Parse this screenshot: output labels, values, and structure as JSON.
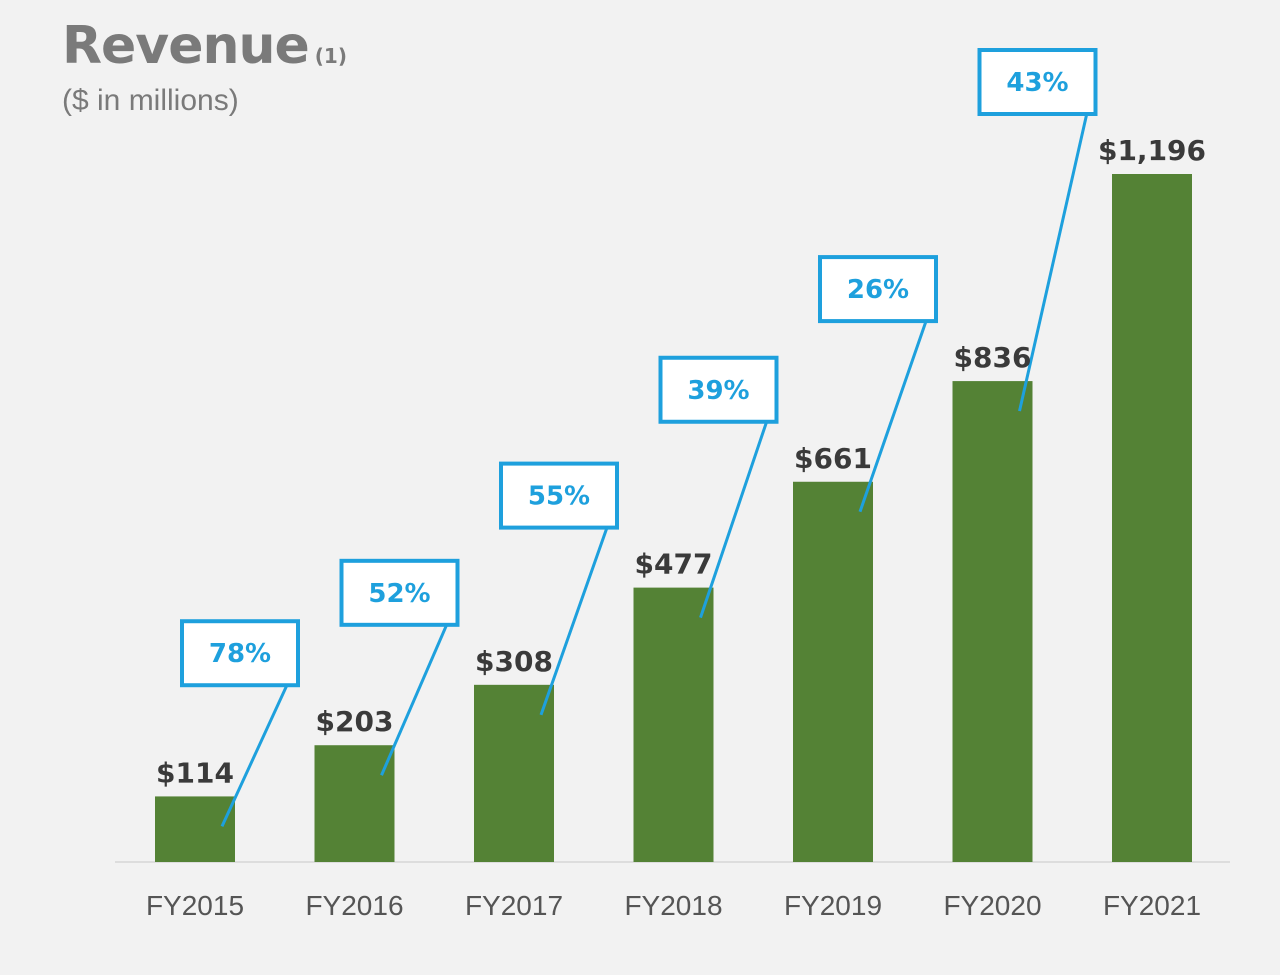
{
  "header": {
    "title": "Revenue",
    "footnote_marker": "(1)",
    "subtitle": "($ in millions)"
  },
  "colors": {
    "bar": "#548235",
    "growth": "#1ea0dd",
    "label": "#3a3a3a",
    "axis": "#dddddd",
    "background": "#f2f2f2"
  },
  "chart_data": {
    "type": "bar",
    "title": "Revenue",
    "subtitle": "($ in millions)",
    "categories": [
      "FY2015",
      "FY2016",
      "FY2017",
      "FY2018",
      "FY2019",
      "FY2020",
      "FY2021"
    ],
    "values": [
      114,
      203,
      308,
      477,
      661,
      836,
      1196
    ],
    "value_labels": [
      "$114",
      "$203",
      "$308",
      "$477",
      "$661",
      "$836",
      "$1,196"
    ],
    "growth_labels": [
      "78%",
      "52%",
      "55%",
      "39%",
      "26%",
      "43%"
    ],
    "xlabel": "",
    "ylabel": "",
    "grid": false,
    "legend": "none"
  }
}
